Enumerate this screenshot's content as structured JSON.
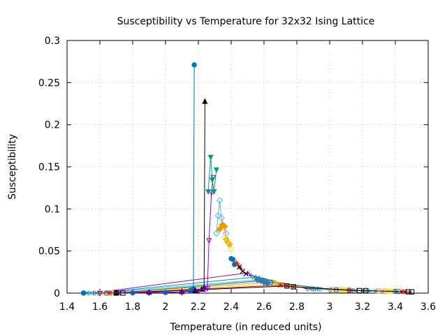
{
  "chart_data": {
    "type": "line",
    "title": "Susceptibility vs Temperature for 32x32 Ising Lattice",
    "xlabel": "Temperature (in reduced units)",
    "ylabel": "Susceptibility",
    "xlim": [
      1.4,
      3.6
    ],
    "ylim": [
      0,
      0.3
    ],
    "xticks": [
      "1.4",
      "1.6",
      "1.8",
      "2",
      "2.2",
      "2.4",
      "2.6",
      "2.8",
      "3",
      "3.2",
      "3.4",
      "3.6"
    ],
    "yticks": [
      "0",
      "0.05",
      "0.1",
      "0.15",
      "0.2",
      "0.25",
      "0.3"
    ],
    "grid": true,
    "legend": "none",
    "series": [
      {
        "color": "#9400d3",
        "marker": "plus",
        "x": [
          1.5,
          1.56,
          2.5,
          2.52,
          2.86,
          2.9,
          3.14,
          3.2
        ],
        "y": [
          0.0001,
          0.0001,
          0.024,
          0.021,
          0.0055,
          0.005,
          0.003,
          0.0029
        ]
      },
      {
        "color": "#009e73",
        "marker": "cross",
        "x": [
          1.52,
          1.58,
          2.54,
          2.56,
          2.88,
          2.92,
          3.16,
          3.22
        ],
        "y": [
          0.0001,
          0.0001,
          0.019,
          0.018,
          0.0052,
          0.0048,
          0.0029,
          0.0028
        ]
      },
      {
        "color": "#56b4e9",
        "marker": "star",
        "x": [
          1.54,
          1.6,
          2.58,
          2.62,
          2.94,
          3.0,
          3.24,
          3.28
        ],
        "y": [
          0.0001,
          0.0001,
          0.016,
          0.014,
          0.0046,
          0.0042,
          0.0027,
          0.0026
        ]
      },
      {
        "color": "#e69f00",
        "marker": "square",
        "x": [
          1.6,
          1.66,
          2.64,
          2.66,
          3.02,
          3.06,
          3.3,
          3.34
        ],
        "y": [
          0.0001,
          0.0001,
          0.013,
          0.012,
          0.004,
          0.0038,
          0.0025,
          0.0024
        ]
      },
      {
        "color": "#f0e442",
        "marker": "square-filled",
        "x": [
          1.62,
          1.68,
          2.68,
          2.7,
          3.08,
          3.1,
          3.36,
          3.38
        ],
        "y": [
          0.0001,
          0.0001,
          0.011,
          0.01,
          0.0036,
          0.0035,
          0.0023,
          0.0022
        ]
      },
      {
        "color": "#0072b2",
        "marker": "circle",
        "x": [
          1.64,
          1.7,
          2.6,
          2.64,
          3.04,
          3.12,
          3.4,
          3.42
        ],
        "y": [
          0.0001,
          0.0001,
          0.015,
          0.013,
          0.0039,
          0.0034,
          0.0021,
          0.002
        ]
      },
      {
        "color": "#e51e10",
        "marker": "star",
        "x": [
          1.66,
          1.72,
          2.7,
          2.74,
          2.78,
          3.12,
          3.44,
          3.46
        ],
        "y": [
          0.0001,
          0.0001,
          0.0095,
          0.0085,
          0.0075,
          0.0033,
          0.0018,
          0.0017
        ]
      },
      {
        "color": "#000000",
        "marker": "square",
        "x": [
          1.7,
          1.74,
          2.74,
          2.78,
          3.18,
          3.22,
          3.48,
          3.5
        ],
        "y": [
          0.0001,
          0.0001,
          0.0085,
          0.0075,
          0.003,
          0.0029,
          0.0016,
          0.0015
        ]
      },
      {
        "color": "#0072b2",
        "marker": "circle-filled",
        "x": [
          1.5,
          1.8,
          2.0,
          2.1,
          2.15,
          2.165,
          2.17,
          2.175
        ],
        "y": [
          0.0001,
          0.0003,
          0.0007,
          0.0015,
          0.003,
          0.004,
          0.005,
          0.271
        ]
      },
      {
        "color": "#000000",
        "marker": "triangle-filled",
        "x": [
          1.7,
          1.9,
          2.1,
          2.18,
          2.22,
          2.235,
          2.24
        ],
        "y": [
          0.0002,
          0.0005,
          0.0012,
          0.0025,
          0.004,
          0.006,
          0.227
        ]
      },
      {
        "color": "#9400d3",
        "marker": "triangle-down",
        "x": [
          1.6,
          1.9,
          2.1,
          2.2,
          2.24,
          2.255,
          2.265,
          2.28,
          2.29
        ],
        "y": [
          0.0002,
          0.0005,
          0.0012,
          0.0028,
          0.005,
          0.006,
          0.063,
          0.12,
          0.138
        ]
      },
      {
        "color": "#009e73",
        "marker": "triangle-down-filled",
        "x": [
          2.26,
          2.275,
          2.285,
          2.295,
          2.31
        ],
        "y": [
          0.121,
          0.162,
          0.135,
          0.121,
          0.147
        ]
      },
      {
        "color": "#56b4e9",
        "marker": "diamond",
        "x": [
          2.31,
          2.32,
          2.33,
          2.34,
          2.355,
          2.37
        ],
        "y": [
          0.071,
          0.092,
          0.11,
          0.089,
          0.08,
          0.071
        ]
      },
      {
        "color": "#e69f00",
        "marker": "diamond-filled",
        "x": [
          2.33,
          2.345,
          2.36,
          2.37,
          2.38,
          2.39
        ],
        "y": [
          0.076,
          0.081,
          0.079,
          0.064,
          0.06,
          0.058
        ]
      },
      {
        "color": "#f0e442",
        "marker": "circle",
        "x": [
          2.36,
          2.375,
          2.39,
          2.4
        ],
        "y": [
          0.067,
          0.061,
          0.057,
          0.052
        ]
      },
      {
        "color": "#0072b2",
        "marker": "circle-filled",
        "x": [
          2.4,
          2.41,
          2.42
        ],
        "y": [
          0.041,
          0.04,
          0.034
        ]
      },
      {
        "color": "#e51e10",
        "marker": "plus",
        "x": [
          2.43,
          2.44,
          2.45,
          2.46
        ],
        "y": [
          0.037,
          0.035,
          0.031,
          0.029
        ]
      },
      {
        "color": "#000000",
        "marker": "cross",
        "x": [
          2.45,
          2.47,
          2.49
        ],
        "y": [
          0.031,
          0.026,
          0.023
        ]
      },
      {
        "color": "#2c7bb6",
        "marker": "diamond-filled",
        "x": [
          2.56,
          2.58,
          2.6,
          2.62
        ],
        "y": [
          0.016,
          0.015,
          0.013,
          0.012
        ]
      }
    ]
  }
}
